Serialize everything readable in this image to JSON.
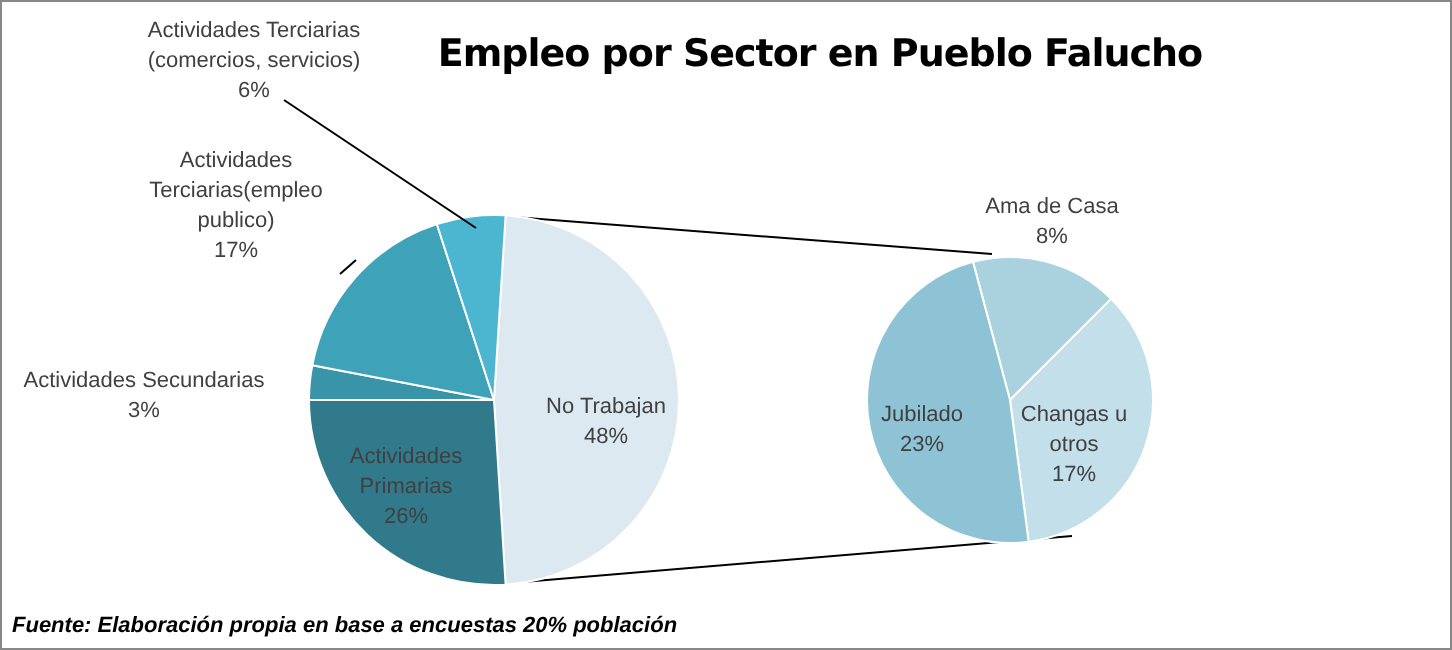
{
  "chart_data": [
    {
      "type": "pie",
      "title": "Empleo por Sector en Pueblo Falucho",
      "annotations": [
        "Fuente: Elaboración propia en base a encuestas 20% población"
      ],
      "categories": [
        "No Trabajan",
        "Actividades Primarias",
        "Actividades Secundarias",
        "Actividades Terciarias(empleo publico)",
        "Actividades Terciarias (comercios, servicios)"
      ],
      "values": [
        48,
        26,
        3,
        17,
        6
      ],
      "colors": [
        "#dde9f0",
        "#317a8c",
        "#3a94a8",
        "#3ea3b8",
        "#4cb5cf"
      ],
      "value_labels": [
        "48%",
        "26%",
        "3%",
        "17%",
        "6%"
      ]
    },
    {
      "type": "pie",
      "categories": [
        "Ama de Casa",
        "Changas u otros",
        "Jubilado"
      ],
      "values": [
        8,
        17,
        23
      ],
      "colors": [
        "#a9d1de",
        "#c3dfe9",
        "#8dc3d5"
      ],
      "value_labels": [
        "8%",
        "17%",
        "23%"
      ]
    }
  ]
}
